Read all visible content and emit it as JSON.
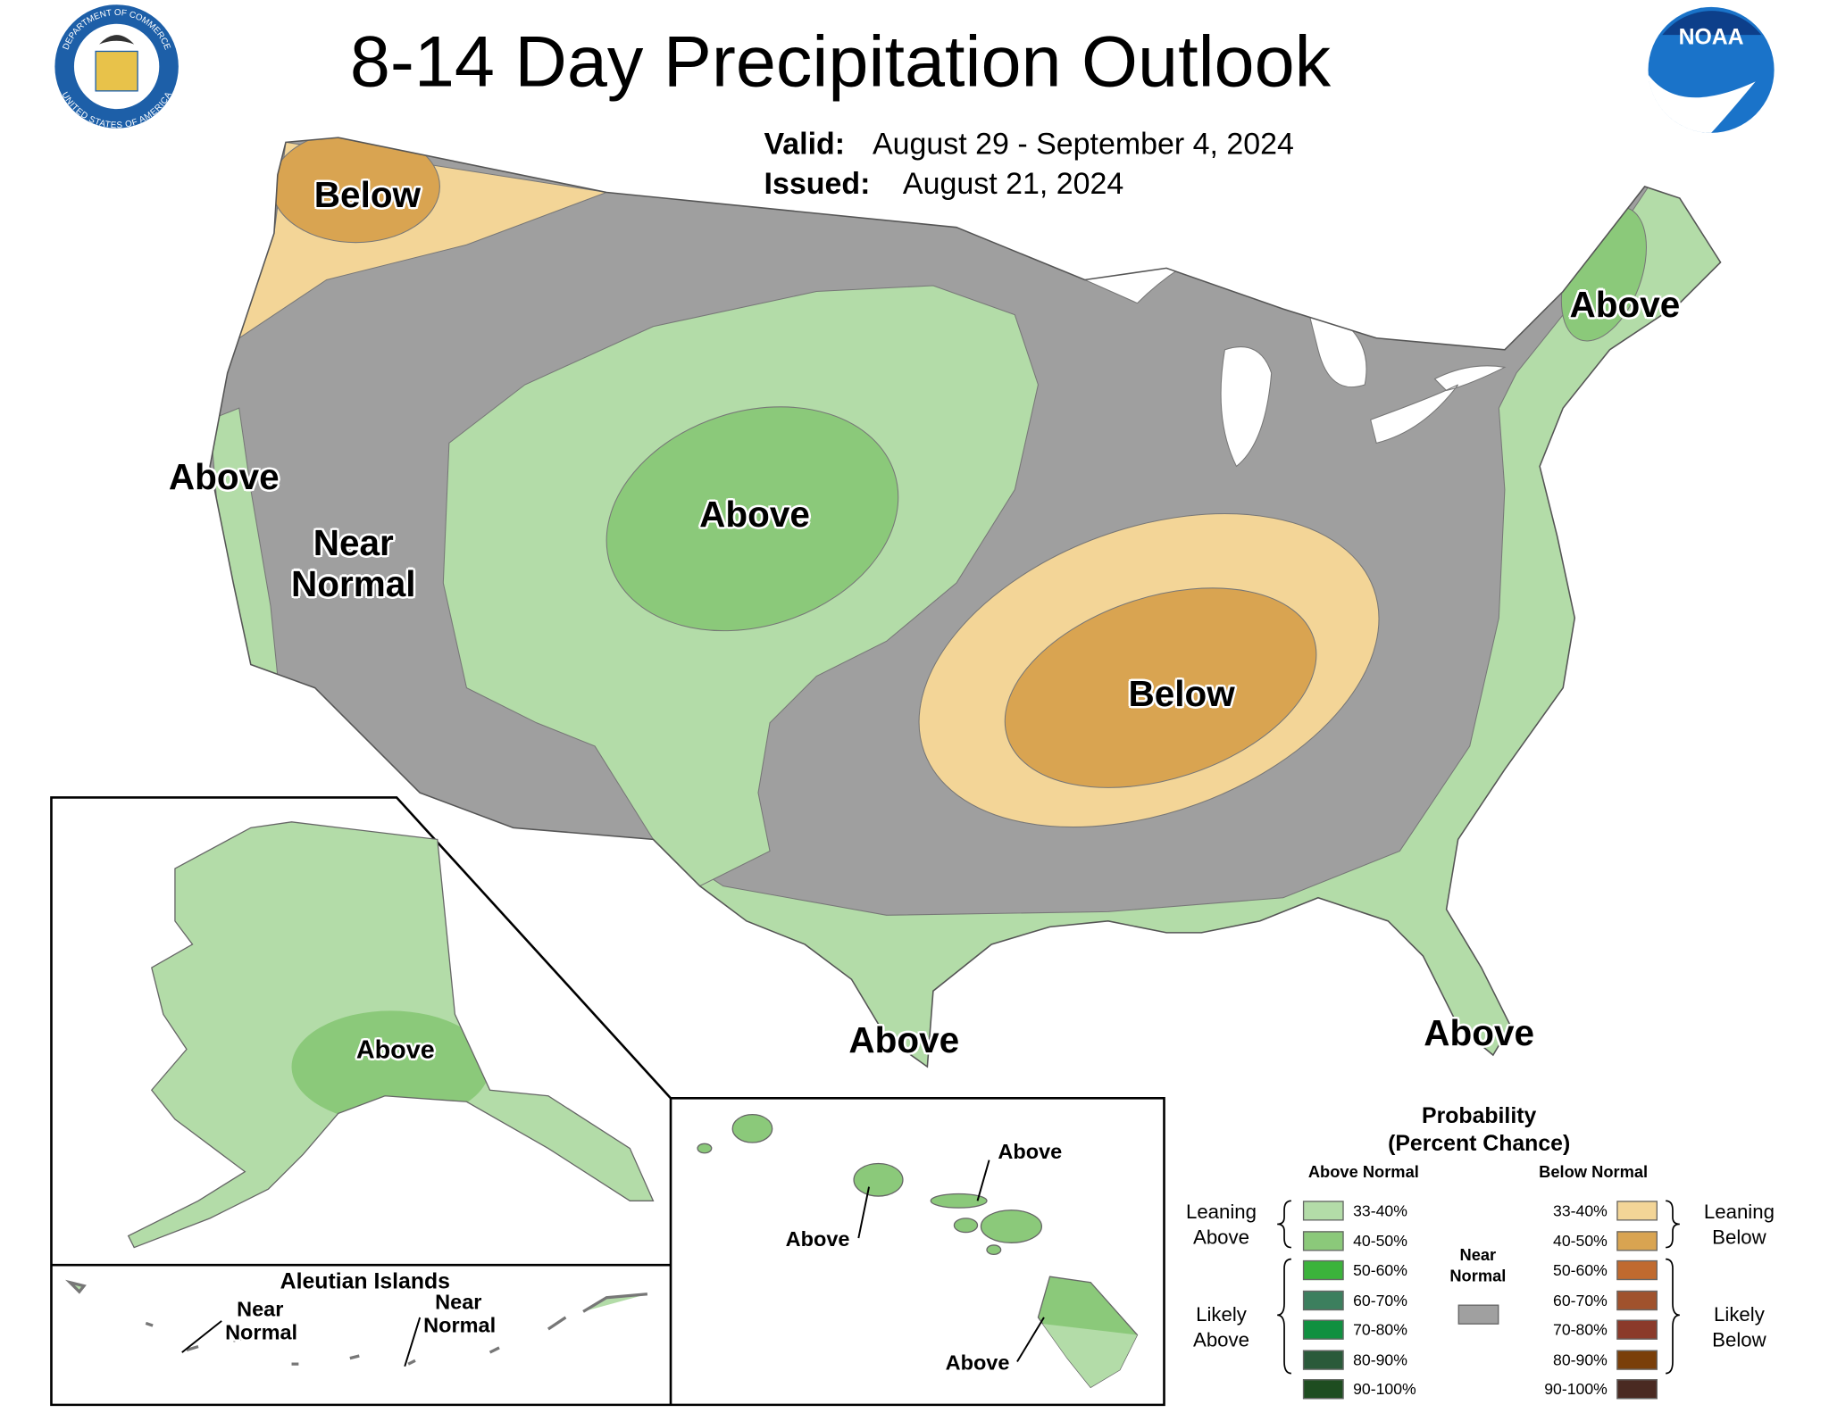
{
  "header": {
    "title": "8-14 Day Precipitation Outlook",
    "valid_label": "Valid:",
    "valid_dates": "August 29 - September 4, 2024",
    "issued_label": "Issued:",
    "issued_date": "August 21, 2024",
    "seal_texts": [
      "DEPARTMENT OF COMMERCE",
      "UNITED STATES OF AMERICA"
    ],
    "noaa_logo": "NOAA"
  },
  "conus_labels": [
    "Below",
    "Above",
    "Near Normal",
    "Above",
    "Below",
    "Above",
    "Above",
    "Above"
  ],
  "alaska": {
    "labels": [
      "Above"
    ]
  },
  "aleutians": {
    "title": "Aleutian Islands",
    "labels": [
      "Near Normal",
      "Near Normal"
    ]
  },
  "hawaii": {
    "labels": [
      "Above",
      "Above",
      "Above"
    ]
  },
  "legend": {
    "title": [
      "Probability",
      "(Percent Chance)"
    ],
    "above_header": "Above Normal",
    "below_header": "Below Normal",
    "above": [
      {
        "range": "33-40%",
        "color": "#b3dca8"
      },
      {
        "range": "40-50%",
        "color": "#8bc97a"
      },
      {
        "range": "50-60%",
        "color": "#3bb33b"
      },
      {
        "range": "60-70%",
        "color": "#3c7f5e"
      },
      {
        "range": "70-80%",
        "color": "#109040"
      },
      {
        "range": "80-90%",
        "color": "#2a5a3a"
      },
      {
        "range": "90-100%",
        "color": "#1e4d20"
      }
    ],
    "below": [
      {
        "range": "33-40%",
        "color": "#f3d597"
      },
      {
        "range": "40-50%",
        "color": "#d9a451"
      },
      {
        "range": "50-60%",
        "color": "#c06a2f"
      },
      {
        "range": "60-70%",
        "color": "#a0522d"
      },
      {
        "range": "70-80%",
        "color": "#8b3a2a"
      },
      {
        "range": "80-90%",
        "color": "#7a3f0a"
      },
      {
        "range": "90-100%",
        "color": "#4a2a22"
      }
    ],
    "leaning_above": "Leaning Above",
    "likely_above": "Likely Above",
    "near_normal": "Near Normal",
    "near_normal_color": "#a0a0a0",
    "leaning_below": "Leaning Below",
    "likely_below": "Likely Below"
  }
}
